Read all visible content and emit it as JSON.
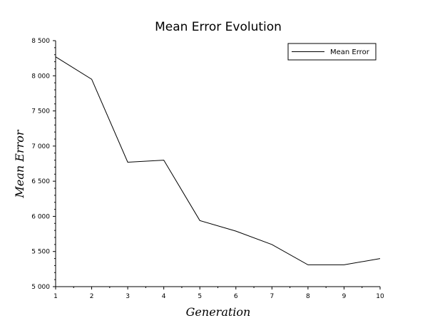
{
  "chart_data": {
    "type": "line",
    "title": "Mean Error Evolution",
    "xlabel": "Generation",
    "ylabel": "Mean Error",
    "xlim": [
      1,
      10
    ],
    "ylim": [
      5000,
      8500
    ],
    "x_ticks": [
      1,
      2,
      3,
      4,
      5,
      6,
      7,
      8,
      9,
      10
    ],
    "y_ticks": [
      5000,
      5500,
      6000,
      6500,
      7000,
      7500,
      8000,
      8500
    ],
    "y_tick_labels": [
      "5 000",
      "5 500",
      "6 000",
      "6 500",
      "7 000",
      "7 500",
      "8 000",
      "8 500"
    ],
    "grid": false,
    "legend_position": "top-right",
    "series": [
      {
        "name": "Mean Error",
        "color": "#000000",
        "x": [
          1,
          2,
          3,
          4,
          5,
          6,
          7,
          8,
          9,
          10
        ],
        "values": [
          8270,
          7950,
          6770,
          6800,
          5940,
          5790,
          5600,
          5310,
          5310,
          5400
        ]
      }
    ]
  }
}
